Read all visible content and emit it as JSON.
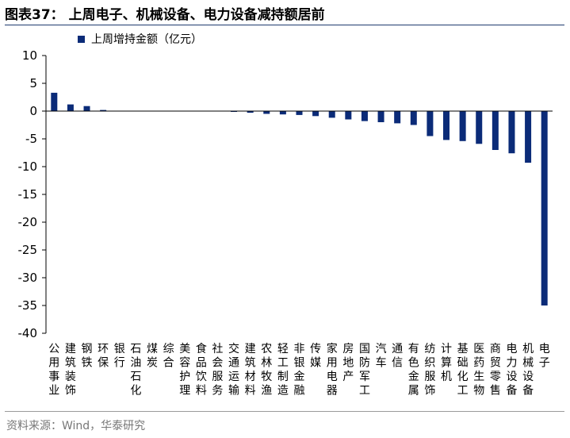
{
  "title": "图表37：  上周电子、机械设备、电力设备减持额居前",
  "source": "资料来源：Wind，华泰研究",
  "colors": {
    "bar": "#0b2b78",
    "axis": "#000000",
    "title_rule": "#1f3b6e"
  },
  "chart_data": {
    "type": "bar",
    "legend_position": "top-left",
    "grid": false,
    "xlabel": "",
    "ylabel": "",
    "ylim": [
      -40,
      10
    ],
    "yticks": [
      10,
      5,
      0,
      -5,
      -10,
      -15,
      -20,
      -25,
      -30,
      -35,
      -40
    ],
    "categories": [
      "公用事业",
      "建筑装饰",
      "钢铁",
      "环保",
      "银行",
      "石油石化",
      "煤炭",
      "综合",
      "美容护理",
      "食品饮料",
      "社会服务",
      "交通运输",
      "建筑材料",
      "农林牧渔",
      "轻工制造",
      "非银金融",
      "传媒",
      "家用电器",
      "房地产",
      "国防军工",
      "汽车",
      "通信",
      "有色金属",
      "纺织服饰",
      "计算机",
      "基础化工",
      "医药生物",
      "商贸零售",
      "电力设备",
      "机械设备",
      "电子"
    ],
    "series": [
      {
        "name": "上周增持金额（亿元）",
        "values": [
          3.3,
          1.2,
          0.9,
          0.2,
          0.0,
          0.0,
          0.0,
          0.0,
          0.0,
          0.0,
          0.0,
          -0.1,
          -0.3,
          -0.5,
          -0.6,
          -0.7,
          -0.9,
          -1.2,
          -1.5,
          -1.8,
          -2.0,
          -2.2,
          -2.5,
          -4.5,
          -5.2,
          -5.4,
          -5.9,
          -7.0,
          -7.6,
          -9.3,
          -35.0
        ]
      }
    ]
  }
}
